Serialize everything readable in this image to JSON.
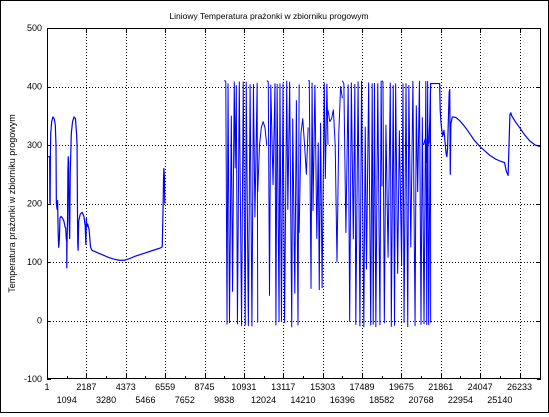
{
  "chart_data": {
    "type": "line",
    "title": "Liniowy    Temperatura prażonki w zbiorniku progowym",
    "ylabel": "Temperatura prażonki w zbiorniku progowym",
    "xlabel": "",
    "xlim": [
      1,
      27426
    ],
    "ylim": [
      -100,
      500
    ],
    "yticks": [
      -100,
      0,
      100,
      200,
      300,
      400,
      500
    ],
    "xticks_row1": [
      "1",
      "2187",
      "4373",
      "6559",
      "8745",
      "10931",
      "13117",
      "15303",
      "17489",
      "19675",
      "21861",
      "24047",
      "26233"
    ],
    "xticks_row1_values": [
      1,
      2187,
      4373,
      6559,
      8745,
      10931,
      13117,
      15303,
      17489,
      19675,
      21861,
      24047,
      26233
    ],
    "xticks_row2": [
      "1094",
      "3280",
      "5466",
      "7652",
      "9838",
      "12024",
      "14210",
      "16396",
      "18582",
      "20768",
      "22954",
      "25140"
    ],
    "xticks_row2_values": [
      1094,
      3280,
      5466,
      7652,
      9838,
      12024,
      14210,
      16396,
      18582,
      20768,
      22954,
      25140
    ],
    "grid": true,
    "line_color": "#0000ff",
    "bursts": [
      {
        "from": 9838,
        "to": 11700,
        "high": 410,
        "low": -12
      },
      {
        "from": 12200,
        "to": 14000,
        "high": 410,
        "low": -12
      },
      {
        "from": 14500,
        "to": 15600,
        "high": 410,
        "low": 50
      },
      {
        "from": 16400,
        "to": 18600,
        "high": 410,
        "low": -12
      },
      {
        "from": 18600,
        "to": 21300,
        "high": 410,
        "low": -12
      }
    ],
    "series": [
      {
        "values": [
          [
            1,
            280
          ],
          [
            150,
            280
          ],
          [
            160,
            202
          ],
          [
            175,
            200
          ],
          [
            190,
            285
          ],
          [
            210,
            320
          ],
          [
            260,
            340
          ],
          [
            330,
            348
          ],
          [
            400,
            345
          ],
          [
            460,
            335
          ],
          [
            500,
            300
          ],
          [
            520,
            200
          ],
          [
            560,
            190
          ],
          [
            590,
            205
          ],
          [
            620,
            150
          ],
          [
            650,
            125
          ],
          [
            690,
            140
          ],
          [
            720,
            175
          ],
          [
            780,
            178
          ],
          [
            860,
            175
          ],
          [
            940,
            170
          ],
          [
            1000,
            160
          ],
          [
            1040,
            158
          ],
          [
            1070,
            140
          ],
          [
            1094,
            135
          ],
          [
            1100,
            90
          ],
          [
            1110,
            130
          ],
          [
            1140,
            170
          ],
          [
            1160,
            255
          ],
          [
            1180,
            280
          ],
          [
            1200,
            270
          ],
          [
            1230,
            170
          ],
          [
            1260,
            140
          ],
          [
            1290,
            250
          ],
          [
            1350,
            320
          ],
          [
            1420,
            340
          ],
          [
            1500,
            348
          ],
          [
            1580,
            345
          ],
          [
            1640,
            320
          ],
          [
            1670,
            300
          ],
          [
            1690,
            200
          ],
          [
            1700,
            160
          ],
          [
            1710,
            130
          ],
          [
            1730,
            120
          ],
          [
            1760,
            170
          ],
          [
            1850,
            182
          ],
          [
            1950,
            185
          ],
          [
            2050,
            178
          ],
          [
            2120,
            162
          ],
          [
            2160,
            130
          ],
          [
            2187,
            175
          ],
          [
            2210,
            160
          ],
          [
            2260,
            165
          ],
          [
            2300,
            160
          ],
          [
            2340,
            155
          ],
          [
            2380,
            140
          ],
          [
            2420,
            125
          ],
          [
            2500,
            120
          ],
          [
            2800,
            116
          ],
          [
            3100,
            112
          ],
          [
            3400,
            108
          ],
          [
            3700,
            105
          ],
          [
            4000,
            103
          ],
          [
            4300,
            103
          ],
          [
            4600,
            106
          ],
          [
            4900,
            110
          ],
          [
            5200,
            113
          ],
          [
            5500,
            116
          ],
          [
            5800,
            119
          ],
          [
            6100,
            122
          ],
          [
            6300,
            124
          ],
          [
            6400,
            126
          ],
          [
            6450,
            200
          ],
          [
            6470,
            240
          ],
          [
            6490,
            260
          ],
          [
            6520,
            245
          ],
          [
            6540,
            200
          ]
        ]
      },
      {
        "values": [
          [
            20900,
            300
          ],
          [
            21000,
            310
          ],
          [
            21050,
            310
          ],
          [
            21080,
            270
          ],
          [
            21100,
            300
          ],
          [
            21150,
            300
          ],
          [
            21200,
            305
          ],
          [
            21250,
            340
          ],
          [
            21300,
            405
          ],
          [
            21400,
            405
          ],
          [
            21600,
            405
          ],
          [
            21800,
            405
          ],
          [
            21830,
            360
          ],
          [
            21861,
            345
          ],
          [
            21900,
            330
          ],
          [
            21960,
            315
          ],
          [
            22000,
            320
          ],
          [
            22040,
            325
          ],
          [
            22100,
            305
          ],
          [
            22160,
            285
          ],
          [
            22200,
            280
          ],
          [
            22240,
            295
          ],
          [
            22280,
            340
          ],
          [
            22330,
            390
          ],
          [
            22360,
            395
          ],
          [
            22390,
            250
          ],
          [
            22420,
            335
          ],
          [
            22500,
            348
          ],
          [
            22700,
            347
          ],
          [
            22900,
            342
          ],
          [
            23100,
            335
          ],
          [
            23300,
            327
          ],
          [
            23500,
            318
          ],
          [
            23700,
            309
          ],
          [
            23900,
            302
          ],
          [
            24050,
            297
          ]
        ]
      }
    ]
  }
}
